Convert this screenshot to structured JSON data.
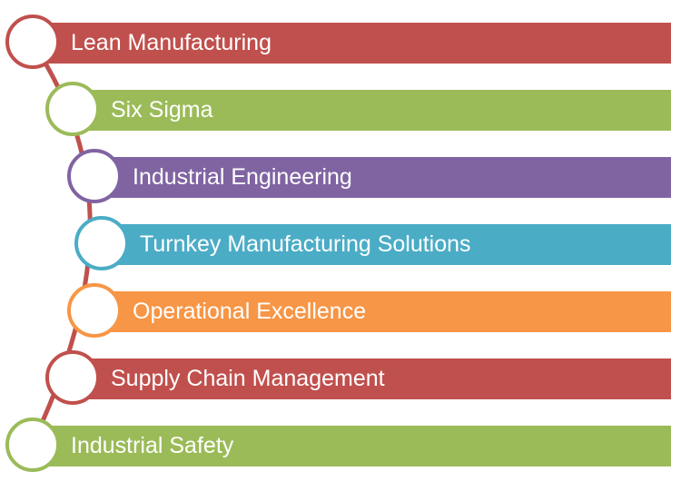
{
  "colors": {
    "connector": "#c0504d",
    "red": "#c0504d",
    "green": "#9bbb59",
    "purple": "#8064a2",
    "teal": "#4bacc6",
    "orange": "#f79646"
  },
  "items": [
    {
      "label": "Lean Manufacturing",
      "color": "#c0504d"
    },
    {
      "label": "Six Sigma",
      "color": "#9bbb59"
    },
    {
      "label": "Industrial Engineering",
      "color": "#8064a2"
    },
    {
      "label": "Turnkey Manufacturing Solutions",
      "color": "#4bacc6"
    },
    {
      "label": "Operational Excellence",
      "color": "#f79646"
    },
    {
      "label": "Supply Chain Management",
      "color": "#c0504d"
    },
    {
      "label": "Industrial Safety",
      "color": "#9bbb59"
    }
  ]
}
